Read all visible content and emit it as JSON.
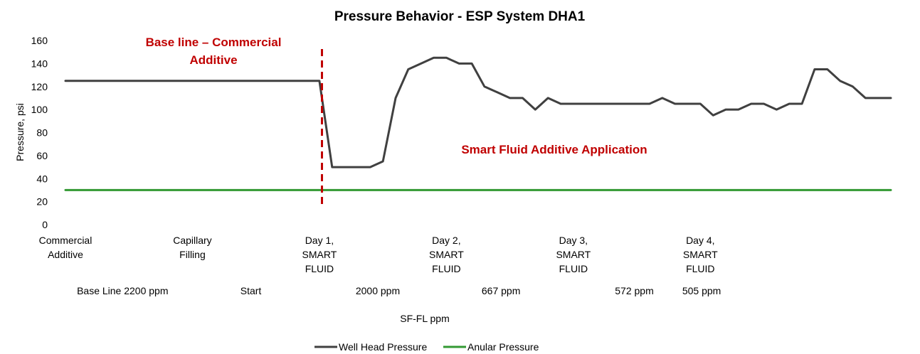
{
  "chart_data": {
    "type": "line",
    "title": "Pressure Behavior - ESP System DHA1",
    "ylabel": "Pressure, psi",
    "xlabel": "SF-FL  ppm",
    "ylim": [
      0,
      160
    ],
    "y_ticks": [
      0,
      20,
      40,
      60,
      80,
      100,
      120,
      140,
      160
    ],
    "grid": false,
    "legend_position": "bottom",
    "category_labels": [
      {
        "index": 0,
        "lines": [
          "Commercial",
          "Additive"
        ]
      },
      {
        "index": 10,
        "lines": [
          "Capillary",
          "Filling"
        ]
      },
      {
        "index": 20,
        "lines": [
          "Day 1,",
          "SMART",
          "FLUID"
        ]
      },
      {
        "index": 30,
        "lines": [
          "Day 2,",
          "SMART",
          "FLUID"
        ]
      },
      {
        "index": 40,
        "lines": [
          "Day 3,",
          "SMART",
          "FLUID"
        ]
      },
      {
        "index": 50,
        "lines": [
          "Day 4,",
          "SMART",
          "FLUID"
        ]
      }
    ],
    "ppm_labels": [
      {
        "index": 4.5,
        "text": "Base Line 2200 ppm"
      },
      {
        "index": 14.6,
        "text": "Start"
      },
      {
        "index": 24.6,
        "text": "2000 ppm"
      },
      {
        "index": 34.3,
        "text": "667 ppm"
      },
      {
        "index": 44.8,
        "text": "572 ppm"
      },
      {
        "index": 50.1,
        "text": "505 ppm"
      }
    ],
    "series": [
      {
        "name": "Well Head Pressure",
        "color": "#404040",
        "values": [
          125,
          125,
          125,
          125,
          125,
          125,
          125,
          125,
          125,
          125,
          125,
          125,
          125,
          125,
          125,
          125,
          125,
          125,
          125,
          125,
          125,
          50,
          50,
          50,
          50,
          55,
          110,
          135,
          140,
          145,
          145,
          140,
          140,
          120,
          115,
          110,
          110,
          100,
          110,
          105,
          105,
          105,
          105,
          105,
          105,
          105,
          105,
          110,
          105,
          105,
          105,
          95,
          100,
          100,
          105,
          105,
          100,
          105,
          105,
          135,
          135,
          125,
          120,
          110,
          110,
          110
        ]
      },
      {
        "name": "Anular Pressure",
        "color": "#339933",
        "values": [
          30,
          30,
          30,
          30,
          30,
          30,
          30,
          30,
          30,
          30,
          30,
          30,
          30,
          30,
          30,
          30,
          30,
          30,
          30,
          30,
          30,
          30,
          30,
          30,
          30,
          30,
          30,
          30,
          30,
          30,
          30,
          30,
          30,
          30,
          30,
          30,
          30,
          30,
          30,
          30,
          30,
          30,
          30,
          30,
          30,
          30,
          30,
          30,
          30,
          30,
          30,
          30,
          30,
          30,
          30,
          30,
          30,
          30,
          30,
          30,
          30,
          30,
          30,
          30,
          30,
          30
        ]
      }
    ],
    "annotations": [
      {
        "lines": [
          "Base line – Commercial",
          "Additive"
        ],
        "color": "#c00000"
      },
      {
        "lines": [
          "Smart Fluid Additive Application"
        ],
        "color": "#c00000"
      }
    ],
    "reference_line": {
      "index": 20.2,
      "color": "#c00000",
      "style": "dashed"
    }
  }
}
